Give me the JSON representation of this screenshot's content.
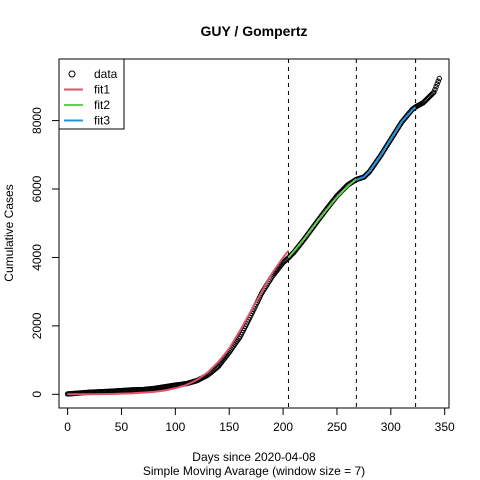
{
  "chart_data": {
    "type": "line",
    "title": "GUY / Gompertz",
    "xlabel": "Days since 2020-04-08",
    "subtitle": "Simple Moving Avarage (window size = 7)",
    "ylabel": "Cumulative Cases",
    "xlim": [
      -8,
      354
    ],
    "ylim": [
      -400,
      9800
    ],
    "x_ticks": [
      0,
      50,
      100,
      150,
      200,
      250,
      300,
      350
    ],
    "y_ticks": [
      0,
      2000,
      4000,
      6000,
      8000
    ],
    "vlines": [
      205,
      268,
      323
    ],
    "legend_position": "top-left",
    "legend": [
      {
        "label": "data",
        "symbol": "circle",
        "color": "#000000"
      },
      {
        "label": "fit1",
        "symbol": "line",
        "color": "#DF536B"
      },
      {
        "label": "fit2",
        "symbol": "line",
        "color": "#61D04F"
      },
      {
        "label": "fit3",
        "symbol": "line",
        "color": "#2297E6"
      }
    ],
    "data_points": [
      [
        0,
        10
      ],
      [
        10,
        35
      ],
      [
        20,
        60
      ],
      [
        30,
        75
      ],
      [
        40,
        90
      ],
      [
        50,
        110
      ],
      [
        60,
        130
      ],
      [
        70,
        140
      ],
      [
        80,
        170
      ],
      [
        90,
        220
      ],
      [
        100,
        270
      ],
      [
        110,
        310
      ],
      [
        120,
        400
      ],
      [
        130,
        560
      ],
      [
        140,
        820
      ],
      [
        150,
        1230
      ],
      [
        160,
        1680
      ],
      [
        170,
        2300
      ],
      [
        180,
        2950
      ],
      [
        190,
        3450
      ],
      [
        200,
        3850
      ],
      [
        205,
        3990
      ],
      [
        210,
        4150
      ],
      [
        220,
        4550
      ],
      [
        230,
        4980
      ],
      [
        240,
        5400
      ],
      [
        250,
        5800
      ],
      [
        260,
        6120
      ],
      [
        268,
        6280
      ],
      [
        275,
        6350
      ],
      [
        280,
        6500
      ],
      [
        290,
        6950
      ],
      [
        300,
        7450
      ],
      [
        310,
        7950
      ],
      [
        320,
        8330
      ],
      [
        323,
        8400
      ],
      [
        330,
        8520
      ],
      [
        340,
        8830
      ],
      [
        345,
        9230
      ]
    ],
    "series": [
      {
        "name": "fit1",
        "color": "#DF536B",
        "points": [
          [
            0,
            0
          ],
          [
            20,
            2
          ],
          [
            40,
            10
          ],
          [
            60,
            30
          ],
          [
            80,
            70
          ],
          [
            90,
            110
          ],
          [
            100,
            180
          ],
          [
            110,
            270
          ],
          [
            120,
            420
          ],
          [
            130,
            640
          ],
          [
            140,
            950
          ],
          [
            150,
            1340
          ],
          [
            160,
            1860
          ],
          [
            170,
            2420
          ],
          [
            180,
            2990
          ],
          [
            190,
            3550
          ],
          [
            200,
            4000
          ],
          [
            205,
            4200
          ]
        ]
      },
      {
        "name": "fit2",
        "color": "#61D04F",
        "points": [
          [
            205,
            4000
          ],
          [
            210,
            4180
          ],
          [
            220,
            4560
          ],
          [
            230,
            4980
          ],
          [
            240,
            5380
          ],
          [
            250,
            5760
          ],
          [
            260,
            6080
          ],
          [
            268,
            6290
          ]
        ]
      },
      {
        "name": "fit3",
        "color": "#2297E6",
        "points": [
          [
            268,
            6270
          ],
          [
            275,
            6350
          ],
          [
            280,
            6510
          ],
          [
            290,
            6950
          ],
          [
            300,
            7460
          ],
          [
            310,
            7960
          ],
          [
            320,
            8310
          ],
          [
            323,
            8390
          ]
        ]
      }
    ]
  }
}
